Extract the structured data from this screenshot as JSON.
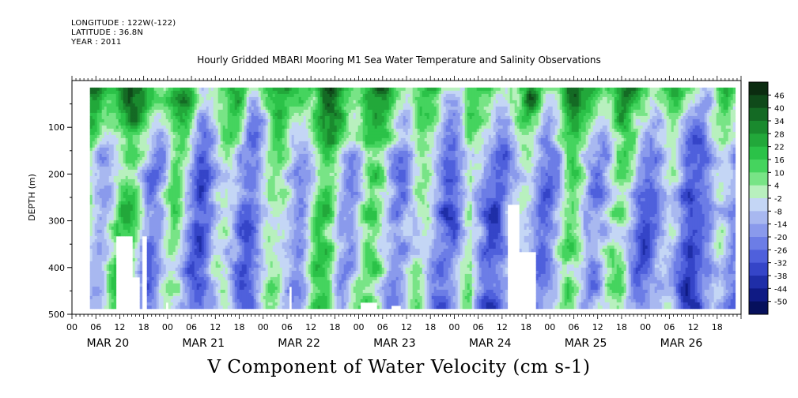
{
  "header": {
    "longitude": "LONGITUDE : 122W(-122)",
    "latitude": "LATITUDE : 36.8N",
    "year": "YEAR : 2011",
    "title": "Hourly Gridded MBARI Mooring M1 Sea Water Temperature and Salinity Observations"
  },
  "chart_data": {
    "type": "heatmap",
    "title": "Hourly Gridded MBARI Mooring M1 Sea Water Temperature and Salinity Observations",
    "subtitle": "V Component of Water Velocity (cm s-1)",
    "ylabel": "DEPTH (m)",
    "xlabel": "",
    "yticks": [
      "100",
      "200",
      "300",
      "400",
      "500"
    ],
    "ylim": [
      500,
      0
    ],
    "hour_ticks": [
      "00",
      "06",
      "12",
      "18",
      "00",
      "06",
      "12",
      "18",
      "00",
      "06",
      "12",
      "18",
      "00",
      "06",
      "12",
      "18",
      "00",
      "06",
      "12",
      "18",
      "00",
      "06",
      "12",
      "18",
      "00",
      "06",
      "12",
      "18"
    ],
    "day_labels": [
      "MAR 20",
      "MAR 21",
      "MAR 22",
      "MAR 23",
      "MAR 24",
      "MAR 25",
      "MAR 26"
    ],
    "colorbar_levels": [
      "46",
      "40",
      "34",
      "28",
      "22",
      "16",
      "10",
      "4",
      "-2",
      "-8",
      "-14",
      "-20",
      "-26",
      "-32",
      "-38",
      "-44",
      "-50"
    ],
    "colorbar_colors": [
      "#0b2c10",
      "#0f4a1a",
      "#146a24",
      "#1a8a2e",
      "#22a83a",
      "#2bc248",
      "#45d45e",
      "#78e486",
      "#b8f0be",
      "#c4d6f5",
      "#a8b8f0",
      "#8a9aec",
      "#6c7de6",
      "#4f60dc",
      "#3545c8",
      "#1f2ea8",
      "#0f1a84",
      "#06105c"
    ],
    "approx_series_note": "",
    "x_range_hours": [
      0,
      168
    ],
    "data_extent_hours": [
      4.5,
      166
    ],
    "depth_range_m": [
      15,
      485
    ]
  }
}
